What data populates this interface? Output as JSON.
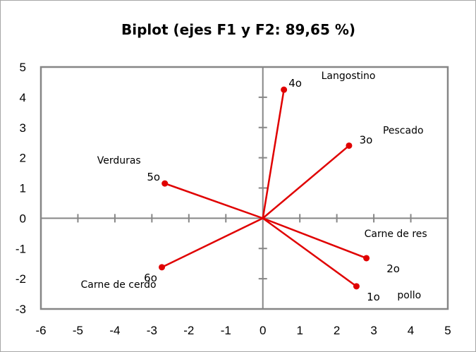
{
  "chart_data": {
    "type": "scatter",
    "title": "Biplot (ejes F1 y F2: 89,65 %)",
    "xlabel": "",
    "ylabel": "",
    "xlim": [
      -6,
      5
    ],
    "ylim": [
      -3,
      5
    ],
    "x_ticks": [
      "-6",
      "-5",
      "-4",
      "-3",
      "-2",
      "-1",
      "0",
      "1",
      "2",
      "3",
      "4",
      "5"
    ],
    "y_ticks": [
      "5",
      "4",
      "3",
      "2",
      "1",
      "0",
      "-1",
      "-2",
      "-3"
    ],
    "grid": false,
    "line_color": "#e00000",
    "points": [
      {
        "x": 0.57,
        "y": 4.25,
        "obs": "4o",
        "var": "Langostino"
      },
      {
        "x": 2.33,
        "y": 2.4,
        "obs": "3o",
        "var": "Pescado"
      },
      {
        "x": -2.65,
        "y": 1.15,
        "obs": "5o",
        "var": "Verduras"
      },
      {
        "x": 2.8,
        "y": -1.32,
        "obs": "2o",
        "var": "Carne de res"
      },
      {
        "x": 2.53,
        "y": -2.25,
        "obs": "1o",
        "var": "pollo"
      },
      {
        "x": -2.73,
        "y": -1.62,
        "obs": "6o",
        "var": "Carne de cerdo"
      }
    ]
  }
}
